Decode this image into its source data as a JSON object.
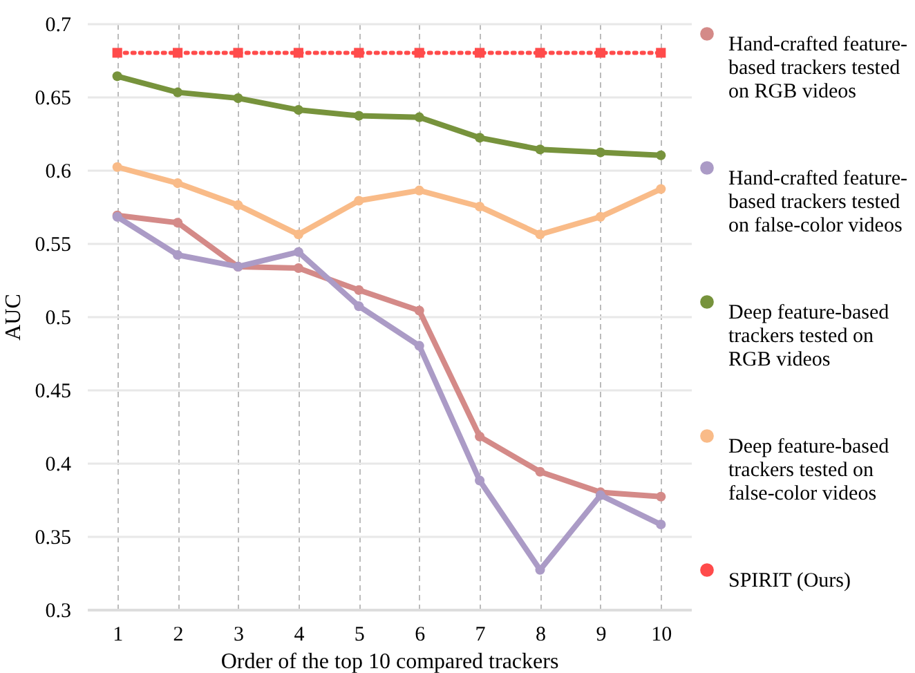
{
  "chart_data": {
    "type": "line",
    "xlabel": "Order of the top 10 compared trackers",
    "ylabel": "AUC",
    "categories": [
      "1",
      "2",
      "3",
      "4",
      "5",
      "6",
      "7",
      "8",
      "9",
      "10"
    ],
    "ylim": [
      0.3,
      0.7
    ],
    "yticks": [
      0.3,
      0.35,
      0.4,
      0.45,
      0.5,
      0.55,
      0.6,
      0.65,
      0.7
    ],
    "grid": true,
    "legend": "right",
    "series": [
      {
        "name": "Hand-crafted feature-based trackers tested on RGB videos",
        "color": "#d48a88",
        "marker": "circle",
        "line_style": "solid",
        "values": [
          0.569,
          0.564,
          0.534,
          0.533,
          0.518,
          0.504,
          0.418,
          0.394,
          0.38,
          0.377
        ]
      },
      {
        "name": "Hand-crafted feature-based trackers tested on false-color videos",
        "color": "#ab9bc6",
        "marker": "circle",
        "line_style": "solid",
        "values": [
          0.568,
          0.542,
          0.534,
          0.544,
          0.507,
          0.48,
          0.388,
          0.327,
          0.378,
          0.358
        ]
      },
      {
        "name": "Deep feature-based trackers tested on RGB videos",
        "color": "#77933c",
        "marker": "circle",
        "line_style": "solid",
        "values": [
          0.664,
          0.653,
          0.649,
          0.641,
          0.637,
          0.636,
          0.622,
          0.614,
          0.612,
          0.61
        ]
      },
      {
        "name": "Deep feature-based trackers tested on false-color videos",
        "color": "#f9bb88",
        "marker": "circle",
        "line_style": "solid",
        "values": [
          0.602,
          0.591,
          0.576,
          0.556,
          0.579,
          0.586,
          0.575,
          0.556,
          0.568,
          0.587
        ]
      },
      {
        "name": "SPIRIT (Ours)",
        "color": "#ff4b4b",
        "marker": "square",
        "line_style": "dotted",
        "values": [
          0.68,
          0.68,
          0.68,
          0.68,
          0.68,
          0.68,
          0.68,
          0.68,
          0.68,
          0.68
        ]
      }
    ]
  }
}
